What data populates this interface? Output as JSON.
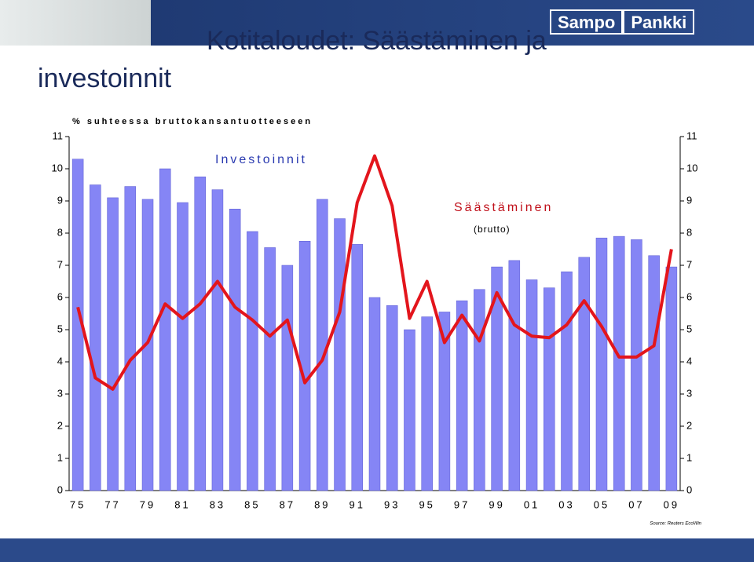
{
  "logo": {
    "brand1": "Sampo",
    "brand2": "Pankki"
  },
  "chart_data": {
    "type": "bar",
    "title": "Kotitaloudet: Säästäminen ja investoinnit",
    "subtitle": "% suhteessa bruttokansantuotteeseen",
    "annotation": "(brutto)",
    "source": "Source: Reuters EcoWin",
    "categories": [
      "75",
      null,
      "77",
      null,
      "79",
      null,
      "81",
      null,
      "83",
      null,
      "85",
      null,
      "87",
      null,
      "89",
      null,
      "91",
      null,
      "93",
      null,
      "95",
      null,
      "97",
      null,
      "99",
      null,
      "01",
      null,
      "03",
      null,
      "05",
      null,
      "07",
      null,
      "09"
    ],
    "series": [
      {
        "name": "Investoinnit",
        "type": "bar",
        "color": "#8585f5",
        "values": [
          10.3,
          9.5,
          9.1,
          9.45,
          9.05,
          10.0,
          8.95,
          9.75,
          9.35,
          8.75,
          8.05,
          7.55,
          7.0,
          7.75,
          9.05,
          8.45,
          7.65,
          6.0,
          5.75,
          5.0,
          5.4,
          5.55,
          5.9,
          6.25,
          6.95,
          7.15,
          6.55,
          6.3,
          6.8,
          7.25,
          7.85,
          7.9,
          7.8,
          7.3,
          6.95
        ]
      },
      {
        "name": "Säästäminen",
        "type": "line",
        "color": "#e3151c",
        "values": [
          5.7,
          3.5,
          3.15,
          4.05,
          4.6,
          5.8,
          5.35,
          5.8,
          6.5,
          5.7,
          5.3,
          4.8,
          5.3,
          3.35,
          4.05,
          5.55,
          8.95,
          10.4,
          8.85,
          5.35,
          6.5,
          4.6,
          5.45,
          4.65,
          6.15,
          5.15,
          4.8,
          4.75,
          5.15,
          5.9,
          5.1,
          4.15,
          4.15,
          4.5,
          7.5
        ]
      }
    ],
    "ylim": [
      0,
      11
    ],
    "yticks": [
      0,
      1,
      2,
      3,
      4,
      5,
      6,
      7,
      8,
      9,
      10,
      11
    ]
  }
}
